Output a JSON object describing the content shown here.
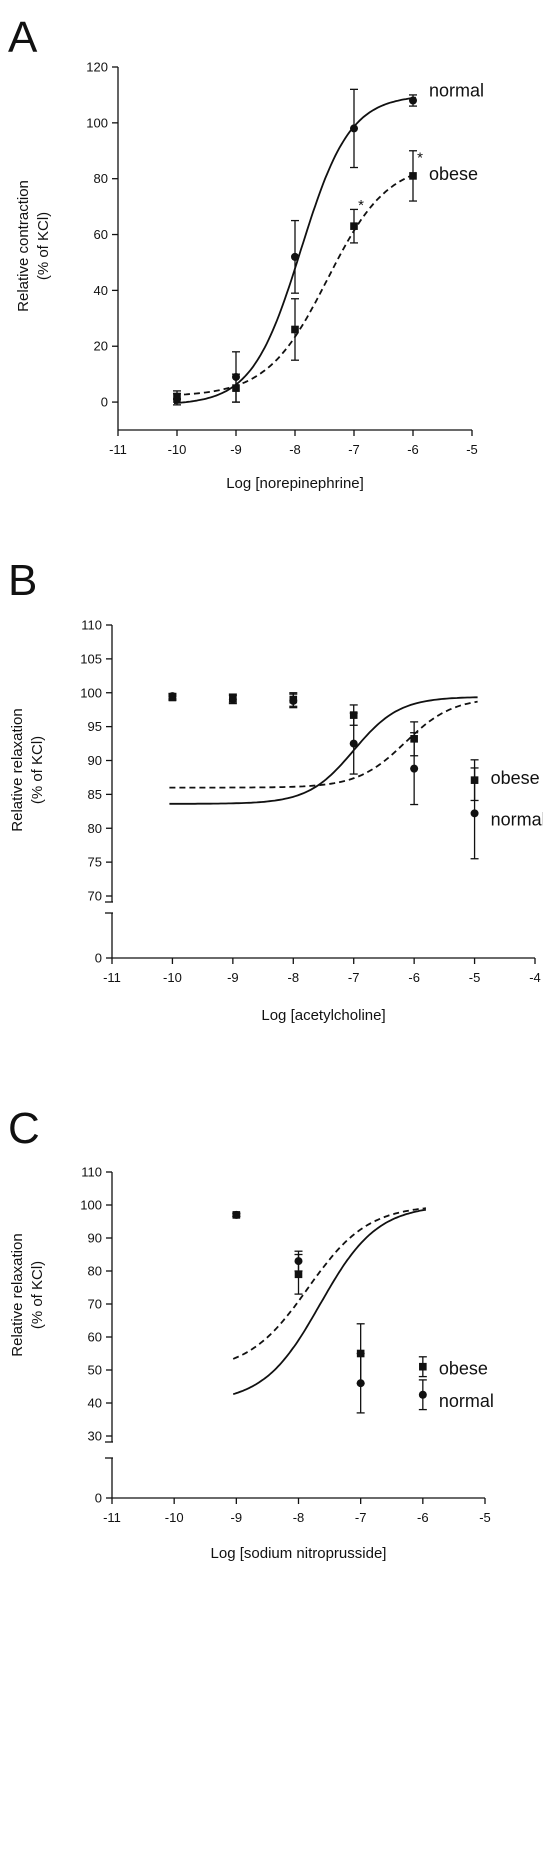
{
  "chart_data": [
    {
      "panel": "A",
      "type": "line",
      "xlabel": "Log [norepinephrine]",
      "ylabel": "Relative contraction",
      "ylabel2": "(% of KCl)",
      "xlim": [
        -11,
        -5
      ],
      "ylim": [
        -10,
        120
      ],
      "xticks": [
        -11,
        -10,
        -9,
        -8,
        -7,
        -6,
        -5
      ],
      "yticks": [
        0,
        20,
        40,
        60,
        80,
        100,
        120
      ],
      "series": [
        {
          "name": "normal",
          "marker": "circle",
          "line": "solid",
          "x": [
            -10,
            -9,
            -8,
            -7,
            -6
          ],
          "y": [
            1,
            9,
            52,
            98,
            108
          ],
          "err": [
            2,
            9,
            13,
            14,
            2
          ]
        },
        {
          "name": "obese",
          "marker": "square",
          "line": "dashed",
          "x": [
            -10,
            -9,
            -8,
            -7,
            -6
          ],
          "y": [
            2,
            5,
            26,
            63,
            81
          ],
          "err": [
            2,
            5,
            11,
            6,
            9
          ]
        }
      ],
      "annotations": [
        {
          "text": "*",
          "x": -6.88,
          "y": 71
        },
        {
          "text": "*",
          "x": -5.88,
          "y": 88
        }
      ]
    },
    {
      "panel": "B",
      "type": "line",
      "xlabel": "Log [acetylcholine]",
      "ylabel": "Relative relaxation",
      "ylabel2": "(% of KCl)",
      "xlim": [
        -11,
        -4
      ],
      "ylim": [
        0,
        110
      ],
      "axis_break": [
        0,
        70
      ],
      "xticks": [
        -11,
        -10,
        -9,
        -8,
        -7,
        -6,
        -5,
        -4
      ],
      "yticks": [
        0,
        70,
        75,
        80,
        85,
        90,
        95,
        100,
        105,
        110
      ],
      "series": [
        {
          "name": "normal",
          "marker": "circle",
          "line": "solid",
          "x": [
            -10,
            -9,
            -8,
            -7,
            -6,
            -5
          ],
          "y": [
            99.5,
            99.0,
            98.8,
            92.5,
            88.8,
            82.2
          ],
          "err": [
            0.4,
            0.6,
            1.0,
            4.5,
            5.3,
            6.7
          ]
        },
        {
          "name": "obese",
          "marker": "square",
          "line": "dashed",
          "x": [
            -10,
            -9,
            -8,
            -7,
            -6,
            -5
          ],
          "y": [
            99.3,
            99.2,
            99.0,
            96.7,
            93.2,
            87.1
          ],
          "err": [
            0.4,
            0.6,
            1.0,
            1.5,
            2.5,
            3.0
          ]
        }
      ]
    },
    {
      "panel": "C",
      "type": "line",
      "xlabel": "Log [sodium nitroprusside]",
      "ylabel": "Relative relaxation",
      "ylabel2": "(% of KCl)",
      "xlim": [
        -11,
        -5
      ],
      "ylim": [
        0,
        110
      ],
      "axis_break": [
        0,
        30
      ],
      "xticks": [
        -11,
        -10,
        -9,
        -8,
        -7,
        -6,
        -5
      ],
      "yticks": [
        0,
        30,
        40,
        50,
        60,
        70,
        80,
        90,
        100,
        110
      ],
      "series": [
        {
          "name": "normal",
          "marker": "circle",
          "line": "solid",
          "x": [
            -9,
            -8,
            -7,
            -6
          ],
          "y": [
            97,
            83,
            46,
            42.5
          ],
          "err": [
            0.5,
            3,
            9,
            4.5
          ]
        },
        {
          "name": "obese",
          "marker": "square",
          "line": "dashed",
          "x": [
            -9,
            -8,
            -7,
            -6
          ],
          "y": [
            97,
            79,
            55,
            51
          ],
          "err": [
            0.5,
            6,
            9,
            3
          ]
        }
      ]
    }
  ]
}
